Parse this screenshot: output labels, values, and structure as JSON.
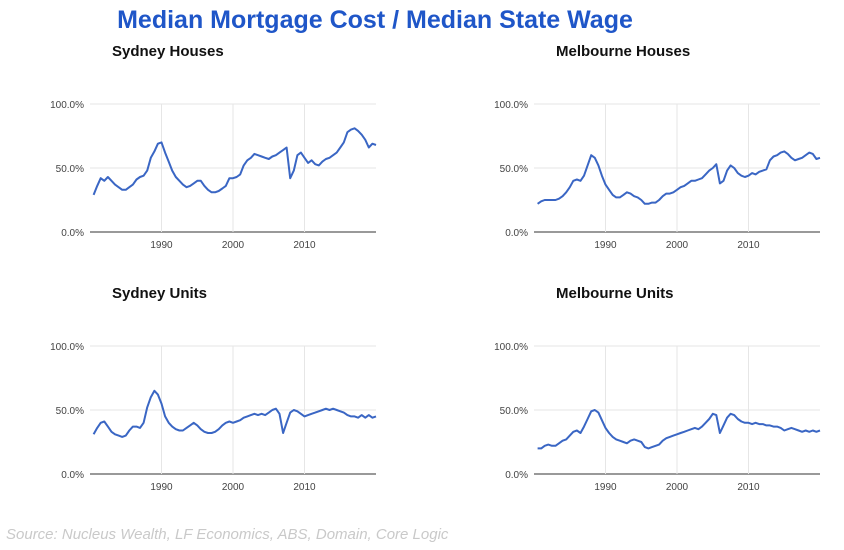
{
  "title": "Median Mortgage Cost / Median State Wage",
  "source": "Source: Nucleus Wealth, LF Economics, ABS, Domain, Core Logic",
  "line_color": "#3a66c4",
  "title_color": "#1f56c8",
  "chart_data": [
    {
      "type": "line",
      "title": "Sydney Houses",
      "ylim": [
        0,
        100
      ],
      "yticks": [
        "0.0%",
        "50.0%",
        "100.0%"
      ],
      "xticks": [
        "1990",
        "2000",
        "2010"
      ],
      "grid": true,
      "x": [
        1980.5,
        1981,
        1981.5,
        1982,
        1982.5,
        1983,
        1983.5,
        1984,
        1984.5,
        1985,
        1985.5,
        1986,
        1986.5,
        1987,
        1987.5,
        1988,
        1988.5,
        1989,
        1989.5,
        1990,
        1990.5,
        1991,
        1991.5,
        1992,
        1992.5,
        1993,
        1993.5,
        1994,
        1994.5,
        1995,
        1995.5,
        1996,
        1996.5,
        1997,
        1997.5,
        1998,
        1998.5,
        1999,
        1999.5,
        2000,
        2000.5,
        2001,
        2001.5,
        2002,
        2002.5,
        2003,
        2003.5,
        2004,
        2004.5,
        2005,
        2005.5,
        2006,
        2006.5,
        2007,
        2007.5,
        2008,
        2008.5,
        2009,
        2009.5,
        2010,
        2010.5,
        2011,
        2011.5,
        2012,
        2012.5,
        2013,
        2013.5,
        2014,
        2014.5,
        2015,
        2015.5,
        2016,
        2016.5,
        2017,
        2017.5,
        2018,
        2018.5,
        2019,
        2019.5,
        2020
      ],
      "values": [
        29,
        36,
        42,
        40,
        43,
        40,
        37,
        35,
        33,
        33,
        35,
        37,
        41,
        43,
        44,
        48,
        58,
        63,
        69,
        70,
        62,
        55,
        48,
        43,
        40,
        37,
        35,
        36,
        38,
        40,
        40,
        36,
        33,
        31,
        31,
        32,
        34,
        36,
        42,
        42,
        43,
        45,
        52,
        56,
        58,
        61,
        60,
        59,
        58,
        57,
        59,
        60,
        62,
        64,
        66,
        42,
        48,
        60,
        62,
        58,
        54,
        56,
        53,
        52,
        55,
        57,
        58,
        60,
        62,
        66,
        70,
        78,
        80,
        81,
        79,
        76,
        72,
        66,
        69,
        68
      ],
      "name": ""
    },
    {
      "type": "line",
      "title": "Melbourne Houses",
      "ylim": [
        0,
        100
      ],
      "yticks": [
        "0.0%",
        "50.0%",
        "100.0%"
      ],
      "xticks": [
        "1990",
        "2000",
        "2010"
      ],
      "grid": true,
      "x": [
        1980.5,
        1981,
        1981.5,
        1982,
        1982.5,
        1983,
        1983.5,
        1984,
        1984.5,
        1985,
        1985.5,
        1986,
        1986.5,
        1987,
        1987.5,
        1988,
        1988.5,
        1989,
        1989.5,
        1990,
        1990.5,
        1991,
        1991.5,
        1992,
        1992.5,
        1993,
        1993.5,
        1994,
        1994.5,
        1995,
        1995.5,
        1996,
        1996.5,
        1997,
        1997.5,
        1998,
        1998.5,
        1999,
        1999.5,
        2000,
        2000.5,
        2001,
        2001.5,
        2002,
        2002.5,
        2003,
        2003.5,
        2004,
        2004.5,
        2005,
        2005.5,
        2006,
        2006.5,
        2007,
        2007.5,
        2008,
        2008.5,
        2009,
        2009.5,
        2010,
        2010.5,
        2011,
        2011.5,
        2012,
        2012.5,
        2013,
        2013.5,
        2014,
        2014.5,
        2015,
        2015.5,
        2016,
        2016.5,
        2017,
        2017.5,
        2018,
        2018.5,
        2019,
        2019.5,
        2020
      ],
      "values": [
        22,
        24,
        25,
        25,
        25,
        25,
        26,
        28,
        31,
        35,
        40,
        41,
        40,
        44,
        52,
        60,
        58,
        52,
        44,
        37,
        33,
        29,
        27,
        27,
        29,
        31,
        30,
        28,
        27,
        25,
        22,
        22,
        23,
        23,
        25,
        28,
        30,
        30,
        31,
        33,
        35,
        36,
        38,
        40,
        40,
        41,
        42,
        45,
        48,
        50,
        53,
        38,
        40,
        48,
        52,
        50,
        46,
        44,
        43,
        44,
        46,
        45,
        47,
        48,
        49,
        56,
        59,
        60,
        62,
        63,
        61,
        58,
        56,
        57,
        58,
        60,
        62,
        61,
        57,
        58
      ],
      "name": ""
    },
    {
      "type": "line",
      "title": "Sydney Units",
      "ylim": [
        0,
        100
      ],
      "yticks": [
        "0.0%",
        "50.0%",
        "100.0%"
      ],
      "xticks": [
        "1990",
        "2000",
        "2010"
      ],
      "grid": true,
      "x": [
        1980.5,
        1981,
        1981.5,
        1982,
        1982.5,
        1983,
        1983.5,
        1984,
        1984.5,
        1985,
        1985.5,
        1986,
        1986.5,
        1987,
        1987.5,
        1988,
        1988.5,
        1989,
        1989.5,
        1990,
        1990.5,
        1991,
        1991.5,
        1992,
        1992.5,
        1993,
        1993.5,
        1994,
        1994.5,
        1995,
        1995.5,
        1996,
        1996.5,
        1997,
        1997.5,
        1998,
        1998.5,
        1999,
        1999.5,
        2000,
        2000.5,
        2001,
        2001.5,
        2002,
        2002.5,
        2003,
        2003.5,
        2004,
        2004.5,
        2005,
        2005.5,
        2006,
        2006.5,
        2007,
        2007.5,
        2008,
        2008.5,
        2009,
        2009.5,
        2010,
        2010.5,
        2011,
        2011.5,
        2012,
        2012.5,
        2013,
        2013.5,
        2014,
        2014.5,
        2015,
        2015.5,
        2016,
        2016.5,
        2017,
        2017.5,
        2018,
        2018.5,
        2019,
        2019.5,
        2020
      ],
      "values": [
        31,
        36,
        40,
        41,
        37,
        33,
        31,
        30,
        29,
        30,
        34,
        37,
        37,
        36,
        40,
        52,
        60,
        65,
        62,
        55,
        45,
        40,
        37,
        35,
        34,
        34,
        36,
        38,
        40,
        38,
        35,
        33,
        32,
        32,
        33,
        35,
        38,
        40,
        41,
        40,
        41,
        42,
        44,
        45,
        46,
        47,
        46,
        47,
        46,
        48,
        50,
        51,
        47,
        32,
        40,
        48,
        50,
        49,
        47,
        45,
        46,
        47,
        48,
        49,
        50,
        51,
        50,
        51,
        50,
        49,
        48,
        46,
        45,
        45,
        44,
        46,
        44,
        46,
        44,
        45
      ],
      "name": ""
    },
    {
      "type": "line",
      "title": "Melbourne Units",
      "ylim": [
        0,
        100
      ],
      "yticks": [
        "0.0%",
        "50.0%",
        "100.0%"
      ],
      "xticks": [
        "1990",
        "2000",
        "2010"
      ],
      "grid": true,
      "x": [
        1980.5,
        1981,
        1981.5,
        1982,
        1982.5,
        1983,
        1983.5,
        1984,
        1984.5,
        1985,
        1985.5,
        1986,
        1986.5,
        1987,
        1987.5,
        1988,
        1988.5,
        1989,
        1989.5,
        1990,
        1990.5,
        1991,
        1991.5,
        1992,
        1992.5,
        1993,
        1993.5,
        1994,
        1994.5,
        1995,
        1995.5,
        1996,
        1996.5,
        1997,
        1997.5,
        1998,
        1998.5,
        1999,
        1999.5,
        2000,
        2000.5,
        2001,
        2001.5,
        2002,
        2002.5,
        2003,
        2003.5,
        2004,
        2004.5,
        2005,
        2005.5,
        2006,
        2006.5,
        2007,
        2007.5,
        2008,
        2008.5,
        2009,
        2009.5,
        2010,
        2010.5,
        2011,
        2011.5,
        2012,
        2012.5,
        2013,
        2013.5,
        2014,
        2014.5,
        2015,
        2015.5,
        2016,
        2016.5,
        2017,
        2017.5,
        2018,
        2018.5,
        2019,
        2019.5,
        2020
      ],
      "values": [
        20,
        20,
        22,
        23,
        22,
        22,
        24,
        26,
        27,
        30,
        33,
        34,
        32,
        37,
        43,
        49,
        50,
        48,
        42,
        36,
        32,
        29,
        27,
        26,
        25,
        24,
        26,
        27,
        26,
        25,
        21,
        20,
        21,
        22,
        23,
        26,
        28,
        29,
        30,
        31,
        32,
        33,
        34,
        35,
        36,
        35,
        37,
        40,
        43,
        47,
        46,
        32,
        38,
        44,
        47,
        46,
        43,
        41,
        40,
        40,
        39,
        40,
        39,
        39,
        38,
        38,
        37,
        37,
        36,
        34,
        35,
        36,
        35,
        34,
        33,
        34,
        33,
        34,
        33,
        34
      ],
      "name": ""
    }
  ]
}
